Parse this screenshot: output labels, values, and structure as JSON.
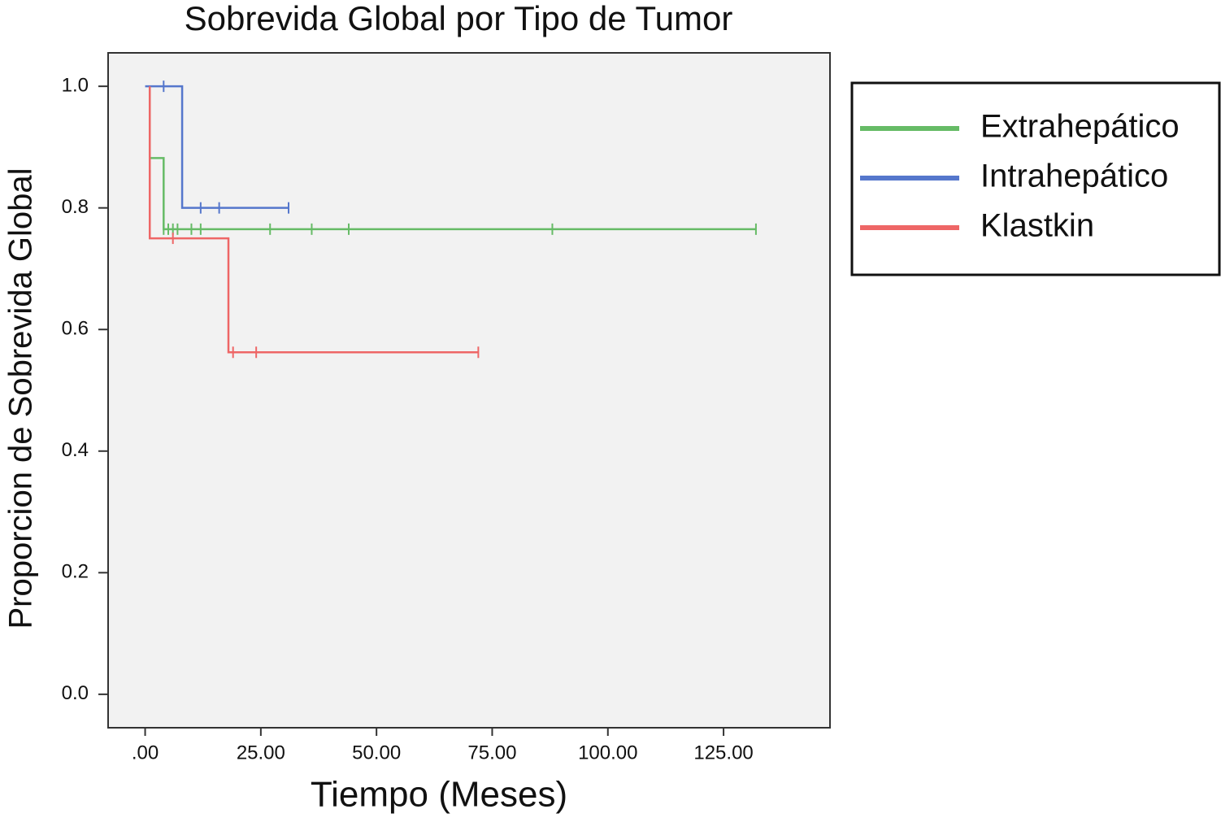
{
  "chart_data": {
    "type": "step-survival",
    "title": "Sobrevida Global por Tipo de Tumor",
    "x_label": "Tiempo (Meses)",
    "y_label": "Proporcion de Sobrevida Global",
    "xlim": [
      -8,
      148
    ],
    "ylim": [
      -0.055,
      1.055
    ],
    "xticks": [
      {
        "value": 0,
        "label": ".00"
      },
      {
        "value": 25,
        "label": "25.00"
      },
      {
        "value": 50,
        "label": "50.00"
      },
      {
        "value": 75,
        "label": "75.00"
      },
      {
        "value": 100,
        "label": "100.00"
      },
      {
        "value": 125,
        "label": "125.00"
      }
    ],
    "yticks": [
      {
        "value": 0,
        "label": "0.0"
      },
      {
        "value": 0.2,
        "label": "0.2"
      },
      {
        "value": 0.4,
        "label": "0.4"
      },
      {
        "value": 0.6,
        "label": "0.6"
      },
      {
        "value": 0.8,
        "label": "0.8"
      },
      {
        "value": 1.0,
        "label": "1.0"
      }
    ],
    "legend_position": "right",
    "series": [
      {
        "name": "Extrahepático",
        "color": "#66bb66",
        "x": [
          1,
          1,
          4,
          4,
          132
        ],
        "values": [
          1.0,
          0.882,
          0.882,
          0.765,
          0.765
        ],
        "censored_x": [
          4,
          5,
          6,
          7,
          10,
          12,
          27,
          36,
          44,
          88,
          132
        ],
        "censored_values": [
          0.765,
          0.765,
          0.765,
          0.765,
          0.765,
          0.765,
          0.765,
          0.765,
          0.765,
          0.765,
          0.765
        ]
      },
      {
        "name": "Intrahepático",
        "color": "#5577cc",
        "x": [
          0,
          8,
          8,
          31
        ],
        "values": [
          1.0,
          1.0,
          0.8,
          0.8
        ],
        "censored_x": [
          4,
          12,
          16,
          31
        ],
        "censored_values": [
          1.0,
          0.8,
          0.8,
          0.8
        ]
      },
      {
        "name": "Klastkin",
        "color": "#ee6666",
        "x": [
          1,
          1,
          18,
          18,
          72
        ],
        "values": [
          1.0,
          0.75,
          0.75,
          0.5625,
          0.5625
        ],
        "censored_x": [
          6,
          19,
          24,
          72
        ],
        "censored_values": [
          0.75,
          0.5625,
          0.5625,
          0.5625
        ]
      }
    ]
  }
}
